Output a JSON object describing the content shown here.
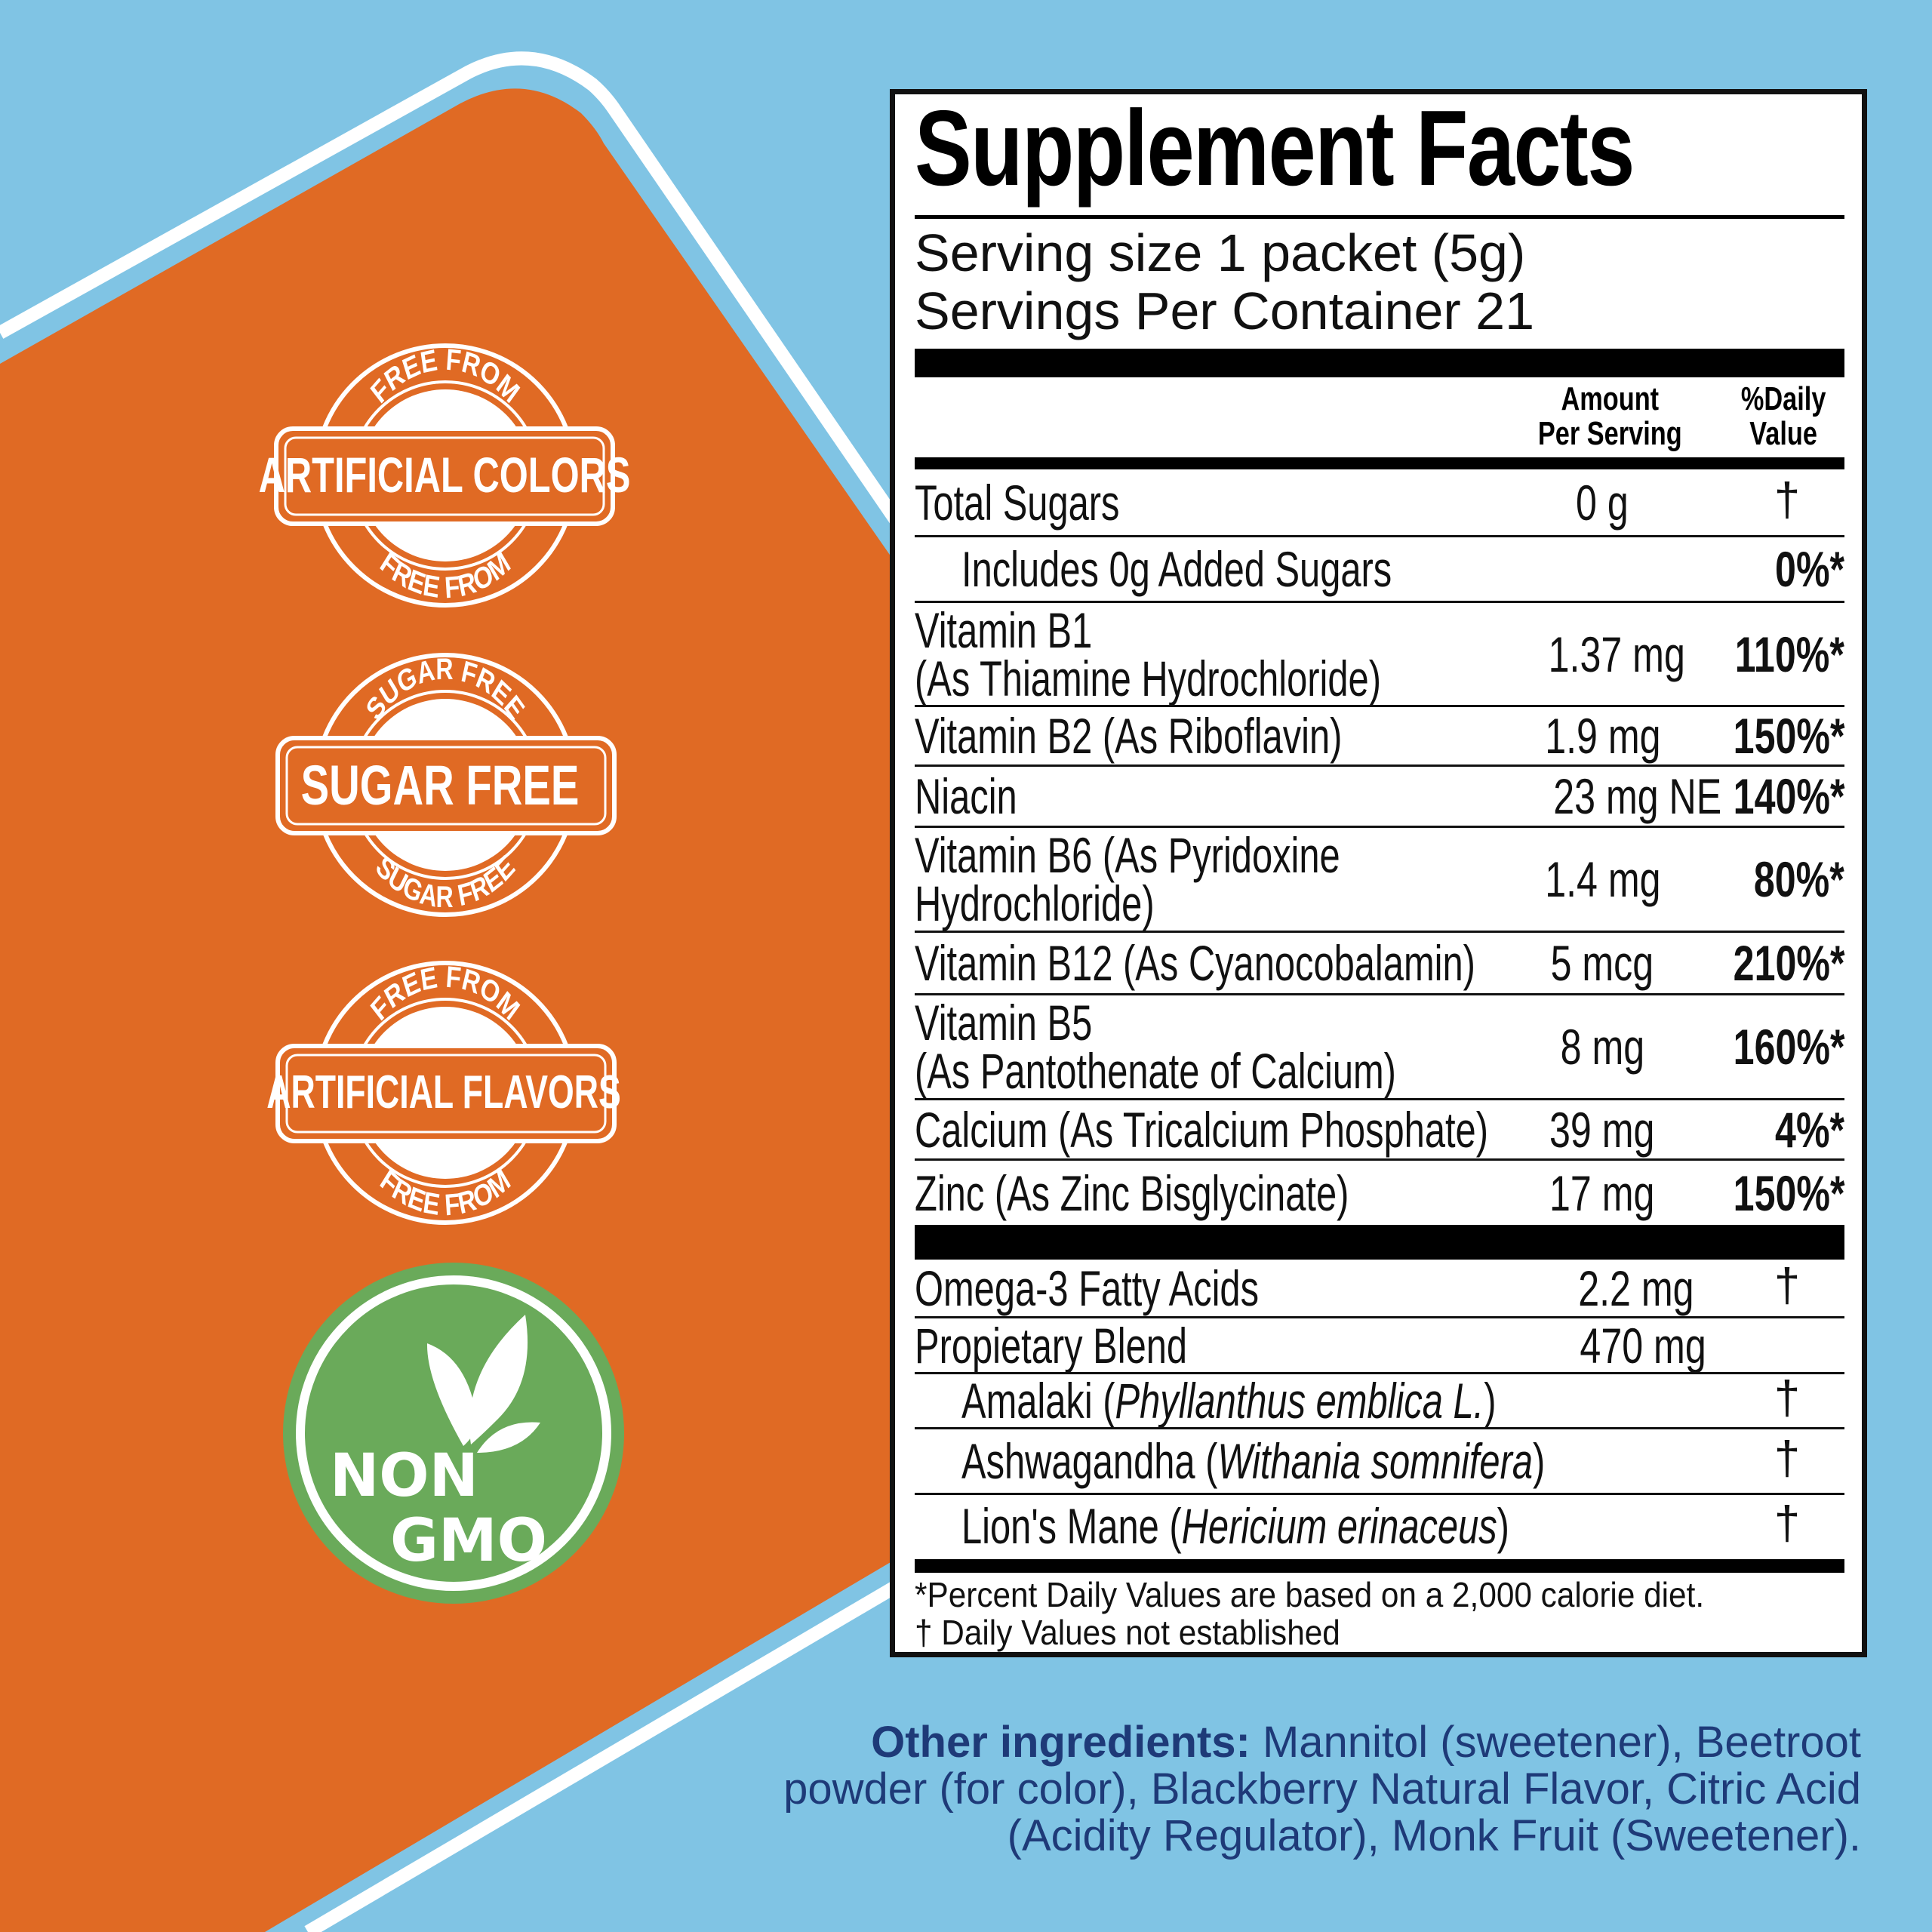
{
  "colors": {
    "background": "#80c4e4",
    "orange": "#e06a24",
    "green": "#6aaa5a",
    "navy": "#1e3a78"
  },
  "badges": [
    {
      "ring_top": "FREE FROM",
      "banner": "ARTIFICIAL COLORS",
      "ring_bottom": "FREE FROM"
    },
    {
      "ring_top": "SUGAR FREE",
      "banner": "SUGAR FREE",
      "ring_bottom": "SUGAR FREE"
    },
    {
      "ring_top": "FREE FROM",
      "banner": "ARTIFICIAL FLAVORS",
      "ring_bottom": "FREE FROM"
    }
  ],
  "non_gmo": {
    "line1": "NON",
    "line2": "GMO",
    "icon": "leaf-sprout-icon"
  },
  "facts": {
    "title": "Supplement Facts",
    "serving_size": "Serving size 1 packet (5g)",
    "servings_per_container": "Servings Per Container 21",
    "header_amount": "Amount\nPer Serving",
    "header_dv": "%Daily\nValue",
    "rows": [
      {
        "name": "Total Sugars",
        "amount": "0 g",
        "dv": "†"
      },
      {
        "name": "Includes 0g Added Sugars",
        "amount": "",
        "dv": "0%*"
      },
      {
        "name": "Vitamin B1\n(As Thiamine Hydrochloride)",
        "amount": "1.37 mg",
        "dv": "110%*"
      },
      {
        "name": "Vitamin B2 (As Riboflavin)",
        "amount": "1.9 mg",
        "dv": "150%*"
      },
      {
        "name": "Niacin",
        "amount": "23 mg NE",
        "dv": "140%*"
      },
      {
        "name": "Vitamin B6 (As Pyridoxine\nHydrochloride)",
        "amount": "1.4 mg",
        "dv": "80%*"
      },
      {
        "name": "Vitamin B12 (As Cyanocobalamin)",
        "amount": "5 mcg",
        "dv": "210%*"
      },
      {
        "name": "Vitamin B5\n(As Pantothenate of Calcium)",
        "amount": "8 mg",
        "dv": "160%*"
      },
      {
        "name": "Calcium (As Tricalcium Phosphate)",
        "amount": "39 mg",
        "dv": "4%*"
      },
      {
        "name": "Zinc (As Zinc Bisglycinate)",
        "amount": "17 mg",
        "dv": "150%*"
      },
      {
        "name": "Omega-3 Fatty Acids",
        "amount": "2.2 mg",
        "dv": "†"
      },
      {
        "name": "Propietary Blend",
        "amount": "470 mg",
        "dv": ""
      },
      {
        "name": "Amalaki (",
        "latin": "Phyllanthus emblica L.",
        "close": ")",
        "dv": "†"
      },
      {
        "name": "Ashwagandha (",
        "latin": "Withania somnifera",
        "close": ")",
        "dv": "†"
      },
      {
        "name": "Lion's Mane (",
        "latin": "Hericium erinaceus",
        "close": ")",
        "dv": "†"
      }
    ],
    "footnote1": "*Percent Daily Values are based on a 2,000 calorie diet.",
    "footnote2": "† Daily Values not established"
  },
  "other_ingredients": {
    "label": "Other ingredients:",
    "line1": " Mannitol (sweetener), Beetroot",
    "line2": "powder (for color), Blackberry Natural Flavor, Citric Acid",
    "line3": "(Acidity Regulator), Monk Fruit (Sweetener)."
  }
}
